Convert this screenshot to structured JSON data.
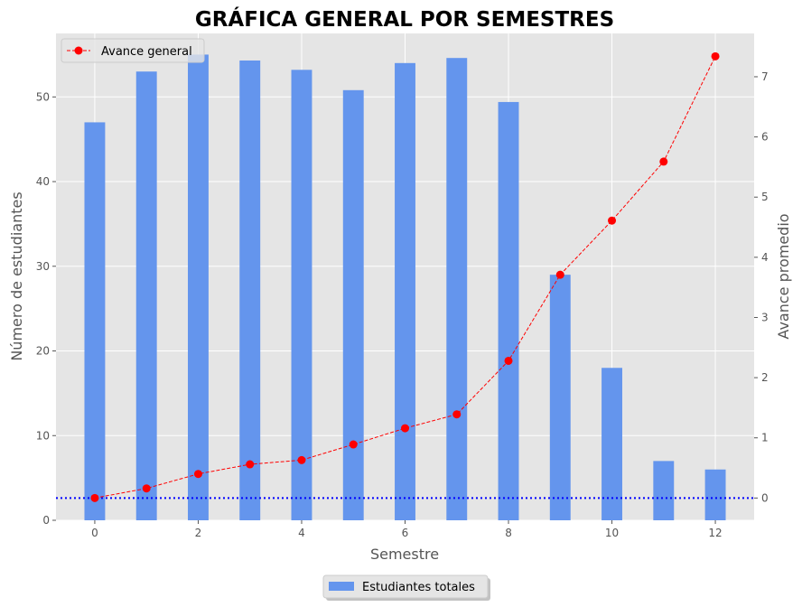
{
  "chart_data": {
    "type": "bar",
    "title": "GRÁFICA GENERAL POR SEMESTRES",
    "xlabel": "Semestre",
    "ylabel": "Número de estudiantes",
    "y2label": "Avance promedio",
    "x_ticks": [
      0,
      2,
      4,
      6,
      8,
      10,
      12
    ],
    "y_ticks": [
      0,
      10,
      20,
      30,
      40,
      50
    ],
    "y2_ticks": [
      0,
      1,
      2,
      3,
      4,
      5,
      6,
      7
    ],
    "xlim": [
      -0.75,
      12.75
    ],
    "ylim": [
      0,
      57.5
    ],
    "y2lim": [
      -0.37,
      7.72
    ],
    "grid": true,
    "style": "ggplot",
    "x": [
      0,
      1,
      2,
      3,
      4,
      5,
      6,
      7,
      8,
      9,
      10,
      11,
      12
    ],
    "series": [
      {
        "name": "Estudiantes totales",
        "type": "bar",
        "axis": "left",
        "color": "#6495ED",
        "values": [
          47,
          53,
          55,
          54.3,
          53.2,
          50.8,
          54,
          54.6,
          49.4,
          29,
          18,
          7,
          6
        ]
      },
      {
        "name": "Avance general",
        "type": "line",
        "axis": "right",
        "color": "#FF0000",
        "line_style": "dashed",
        "marker": "circle",
        "values": [
          0.0,
          0.16,
          0.4,
          0.56,
          0.63,
          0.89,
          1.16,
          1.39,
          2.28,
          3.71,
          4.61,
          5.59,
          7.34
        ]
      }
    ],
    "reference_line": {
      "axis": "right",
      "y": 0,
      "color": "#0000FF",
      "line_style": "dotted"
    },
    "legends": [
      {
        "placement": "upper-left",
        "entries": [
          "Avance general"
        ]
      },
      {
        "placement": "below-center",
        "entries": [
          "Estudiantes totales"
        ]
      }
    ]
  }
}
